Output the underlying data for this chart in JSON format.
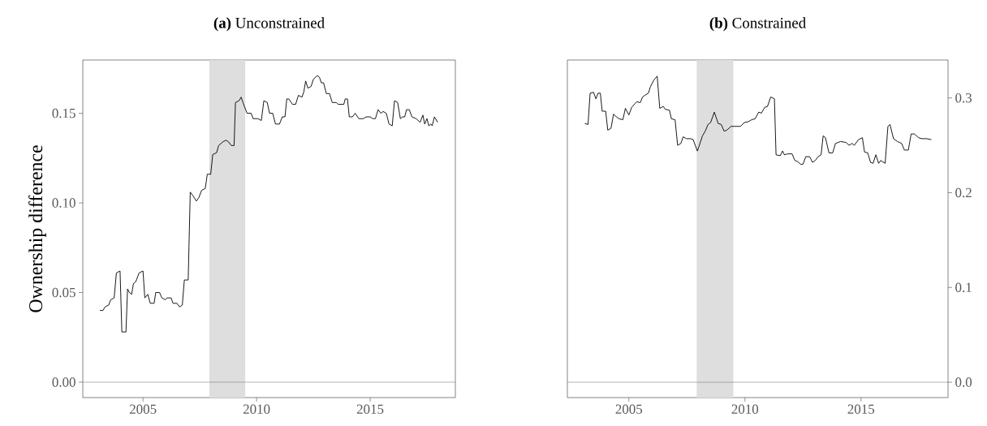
{
  "chart_data": [
    {
      "type": "line",
      "title": "**(a)** Unconstrained",
      "ylabel": "Ownership difference",
      "color": "#000000",
      "x": [
        2003.1,
        2003.24,
        2003.33,
        2003.49,
        2003.58,
        2003.73,
        2003.83,
        2003.99,
        2004.07,
        2004.25,
        2004.32,
        2004.4,
        2004.5,
        2004.58,
        2004.68,
        2004.83,
        2005.0,
        2005.08,
        2005.21,
        2005.32,
        2005.49,
        2005.56,
        2005.73,
        2005.83,
        2005.98,
        2006.07,
        2006.24,
        2006.32,
        2006.49,
        2006.61,
        2006.73,
        2006.82,
        2006.99,
        2007.08,
        2007.2,
        2007.35,
        2007.46,
        2007.58,
        2007.74,
        2007.83,
        2007.98,
        2008.07,
        2008.24,
        2008.33,
        2008.51,
        2008.65,
        2008.77,
        2008.89,
        2009.01,
        2009.07,
        2009.23,
        2009.32,
        2009.4,
        2009.58,
        2009.76,
        2009.85,
        2010.05,
        2010.21,
        2010.32,
        2010.47,
        2010.57,
        2010.71,
        2010.83,
        2011.01,
        2011.13,
        2011.25,
        2011.33,
        2011.42,
        2011.58,
        2011.72,
        2011.84,
        2012.0,
        2012.08,
        2012.16,
        2012.26,
        2012.4,
        2012.5,
        2012.67,
        2012.77,
        2012.85,
        2012.95,
        2013.07,
        2013.21,
        2013.33,
        2013.51,
        2013.59,
        2013.75,
        2013.84,
        2013.9,
        2014.0,
        2014.08,
        2014.22,
        2014.34,
        2014.5,
        2014.7,
        2014.82,
        2015.0,
        2015.11,
        2015.23,
        2015.35,
        2015.47,
        2015.57,
        2015.71,
        2015.83,
        2015.97,
        2016.07,
        2016.21,
        2016.33,
        2016.42,
        2016.52,
        2016.6,
        2016.72,
        2016.84,
        2017.02,
        2017.2,
        2017.32,
        2017.4,
        2017.5,
        2017.58,
        2017.67,
        2017.73,
        2017.83,
        2017.97
      ],
      "values": [
        0.04,
        0.04,
        0.042,
        0.043,
        0.046,
        0.047,
        0.061,
        0.062,
        0.028,
        0.028,
        0.052,
        0.05,
        0.049,
        0.055,
        0.056,
        0.061,
        0.062,
        0.047,
        0.049,
        0.044,
        0.044,
        0.05,
        0.05,
        0.047,
        0.046,
        0.047,
        0.047,
        0.044,
        0.044,
        0.042,
        0.043,
        0.057,
        0.057,
        0.106,
        0.104,
        0.101,
        0.103,
        0.107,
        0.108,
        0.116,
        0.116,
        0.127,
        0.128,
        0.132,
        0.134,
        0.135,
        0.134,
        0.132,
        0.132,
        0.156,
        0.157,
        0.159,
        0.156,
        0.15,
        0.15,
        0.147,
        0.147,
        0.146,
        0.157,
        0.156,
        0.15,
        0.15,
        0.144,
        0.144,
        0.148,
        0.148,
        0.158,
        0.158,
        0.155,
        0.155,
        0.16,
        0.159,
        0.162,
        0.168,
        0.164,
        0.165,
        0.169,
        0.171,
        0.17,
        0.167,
        0.167,
        0.161,
        0.161,
        0.156,
        0.156,
        0.155,
        0.155,
        0.155,
        0.158,
        0.158,
        0.148,
        0.148,
        0.15,
        0.147,
        0.147,
        0.148,
        0.148,
        0.147,
        0.147,
        0.152,
        0.15,
        0.151,
        0.15,
        0.144,
        0.143,
        0.157,
        0.156,
        0.147,
        0.148,
        0.148,
        0.152,
        0.152,
        0.148,
        0.147,
        0.145,
        0.149,
        0.144,
        0.147,
        0.143,
        0.144,
        0.143,
        0.148,
        0.145
      ],
      "xlim": [
        2002.35,
        2018.75
      ],
      "xticks": [
        2005,
        2010,
        2015
      ],
      "ylim": [
        -0.0086,
        0.1797
      ],
      "yticks": [
        {
          "value": 0,
          "label": "0.00"
        },
        0.05,
        {
          "value": 0.1,
          "label": "0.10"
        },
        0.15
      ],
      "ref_lines": [
        {
          "axis": "y",
          "value": 0,
          "color": "#808080"
        }
      ],
      "bands": [
        {
          "axis": "x",
          "from": 2007.92,
          "to": 2009.5,
          "color": "#dedede"
        }
      ]
    },
    {
      "type": "line",
      "title": "**(b)** Constrained",
      "series": [
        {
          "color": "#000000",
          "axis": "y2",
          "x": [
            2003.1,
            2003.24,
            2003.33,
            2003.48,
            2003.58,
            2003.67,
            2003.77,
            2003.85,
            2004.0,
            2004.09,
            2004.23,
            2004.34,
            2004.46,
            2004.58,
            2004.74,
            2004.85,
            2005.0,
            2005.12,
            2005.26,
            2005.35,
            2005.49,
            2005.59,
            2005.7,
            2005.84,
            2005.93,
            2006.08,
            2006.22,
            2006.33,
            2006.48,
            2006.57,
            2006.75,
            2006.83,
            2006.99,
            2007.1,
            2007.24,
            2007.34,
            2007.48,
            2007.65,
            2007.77,
            2007.95,
            2008.05,
            2008.17,
            2008.29,
            2008.41,
            2008.52,
            2008.68,
            2008.85,
            2008.98,
            2009.1,
            2009.22,
            2009.4,
            2009.63,
            2009.81,
            2009.97,
            2010.15,
            2010.29,
            2010.44,
            2010.59,
            2010.71,
            2010.85,
            2010.97,
            2011.11,
            2011.2,
            2011.27,
            2011.34,
            2011.52,
            2011.62,
            2011.7,
            2011.85,
            2012.03,
            2012.15,
            2012.26,
            2012.4,
            2012.5,
            2012.62,
            2012.79,
            2012.91,
            2013.03,
            2013.15,
            2013.28,
            2013.37,
            2013.47,
            2013.62,
            2013.78,
            2013.9,
            2014.12,
            2014.36,
            2014.48,
            2014.62,
            2014.71,
            2014.89,
            2015.06,
            2015.15,
            2015.29,
            2015.41,
            2015.52,
            2015.64,
            2015.76,
            2015.85,
            2016.04,
            2016.16,
            2016.25,
            2016.4,
            2016.57,
            2016.75,
            2016.87,
            2017.04,
            2017.16,
            2017.3,
            2017.48,
            2017.63,
            2017.84,
            2018.03
          ],
          "values": [
            0.273,
            0.272,
            0.305,
            0.306,
            0.299,
            0.305,
            0.305,
            0.286,
            0.286,
            0.266,
            0.268,
            0.283,
            0.28,
            0.278,
            0.277,
            0.289,
            0.282,
            0.29,
            0.294,
            0.296,
            0.295,
            0.301,
            0.303,
            0.305,
            0.312,
            0.319,
            0.323,
            0.289,
            0.291,
            0.288,
            0.287,
            0.278,
            0.277,
            0.25,
            0.252,
            0.259,
            0.257,
            0.257,
            0.256,
            0.244,
            0.251,
            0.26,
            0.265,
            0.272,
            0.274,
            0.285,
            0.273,
            0.272,
            0.265,
            0.266,
            0.27,
            0.27,
            0.27,
            0.274,
            0.275,
            0.277,
            0.278,
            0.285,
            0.284,
            0.29,
            0.291,
            0.301,
            0.3,
            0.299,
            0.24,
            0.239,
            0.244,
            0.24,
            0.241,
            0.241,
            0.234,
            0.233,
            0.23,
            0.23,
            0.238,
            0.238,
            0.232,
            0.234,
            0.238,
            0.24,
            0.26,
            0.258,
            0.242,
            0.242,
            0.252,
            0.254,
            0.253,
            0.25,
            0.252,
            0.25,
            0.256,
            0.258,
            0.243,
            0.242,
            0.232,
            0.231,
            0.24,
            0.231,
            0.234,
            0.231,
            0.27,
            0.272,
            0.257,
            0.254,
            0.252,
            0.245,
            0.245,
            0.262,
            0.262,
            0.258,
            0.257,
            0.257,
            0.256
          ]
        }
      ],
      "xlim": [
        2002.35,
        2018.75
      ],
      "xticks": [
        2005,
        2010,
        2015
      ],
      "y2lim": [
        -0.0162,
        0.34
      ],
      "y2ticks": [
        {
          "value": 0,
          "label": "0.0"
        },
        {
          "value": 0.1,
          "label": "0.1"
        },
        {
          "value": 0.2,
          "label": "0.2"
        },
        {
          "value": 0.3,
          "label": "0.3"
        }
      ],
      "ref_lines": [
        {
          "axis": "y2",
          "value": 0,
          "color": "#808080"
        }
      ],
      "bands": [
        {
          "axis": "x",
          "from": 2007.92,
          "to": 2009.5,
          "color": "#dedede"
        }
      ]
    }
  ]
}
